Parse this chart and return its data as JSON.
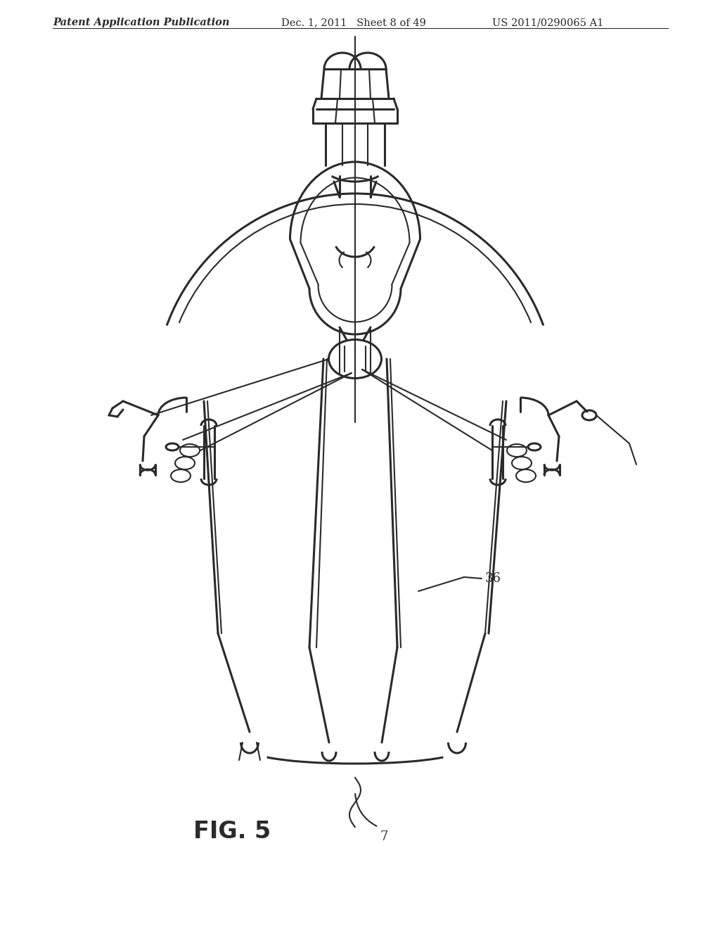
{
  "bg_color": "#ffffff",
  "line_color": "#2a2a2a",
  "header_left": "Patent Application Publication",
  "header_mid": "Dec. 1, 2011   Sheet 8 of 49",
  "header_right": "US 2011/0290065 A1",
  "fig_label": "FIG. 5",
  "label_36": "36",
  "label_7": "7",
  "header_fontsize": 10.5,
  "fig_label_fontsize": 24,
  "annotation_fontsize": 13
}
